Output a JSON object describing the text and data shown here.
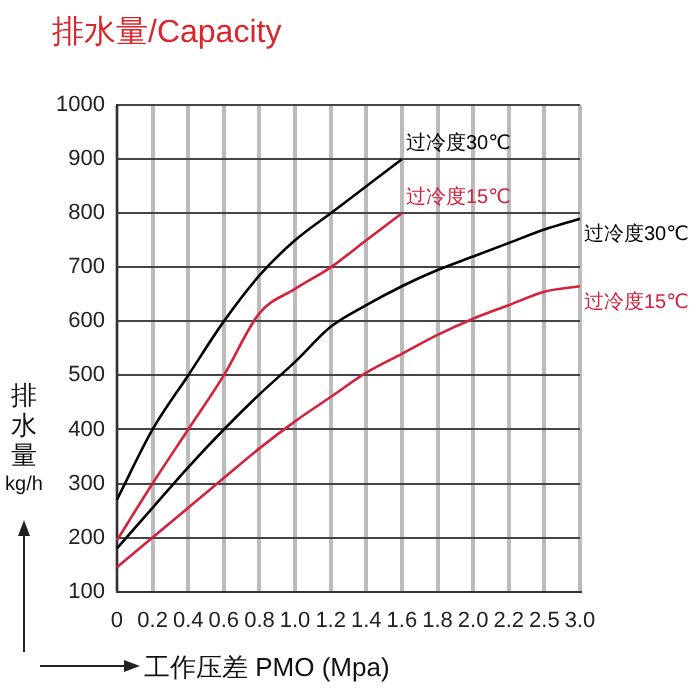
{
  "chart_data": {
    "type": "line",
    "title": "排水量/Capacity",
    "xlabel": "工作压差 PMO (Mpa)",
    "ylabel": "排水量 kg/h",
    "categories": [
      "0",
      "0.2",
      "0.4",
      "0.6",
      "0.8",
      "1.0",
      "1.2",
      "1.4",
      "1.6",
      "1.8",
      "2.0",
      "2.2",
      "2.5",
      "3.0"
    ],
    "series": [
      {
        "color": "#000000",
        "values": [
          270,
          400,
          500,
          600,
          685,
          750,
          800,
          850,
          900,
          null,
          null,
          null,
          null,
          null
        ]
      },
      {
        "color": "#d4213d",
        "values": [
          195,
          300,
          400,
          500,
          615,
          660,
          700,
          750,
          800,
          null,
          null,
          null,
          null,
          null
        ]
      },
      {
        "color": "#000000",
        "values": [
          180,
          255,
          330,
          400,
          465,
          525,
          590,
          630,
          665,
          695,
          720,
          745,
          770,
          790
        ]
      },
      {
        "color": "#d4213d",
        "values": [
          145,
          200,
          255,
          310,
          365,
          415,
          460,
          505,
          540,
          575,
          605,
          630,
          655,
          665
        ]
      }
    ],
    "annotations": [
      {
        "text": "过冷度30℃",
        "x": "1.6",
        "y": 900
      },
      {
        "text": "过冷度15℃",
        "x": "1.6",
        "y": 800
      },
      {
        "text": "过冷度30℃",
        "x": "3.0",
        "y": 790
      },
      {
        "text": "过冷度15℃",
        "x": "3.0",
        "y": 665
      }
    ],
    "ylim": [
      100,
      1000
    ],
    "yticks": [
      100,
      200,
      300,
      400,
      500,
      600,
      700,
      800,
      900,
      1000
    ],
    "grid": true,
    "legend": false,
    "marker": "none",
    "line_style": "solid"
  }
}
